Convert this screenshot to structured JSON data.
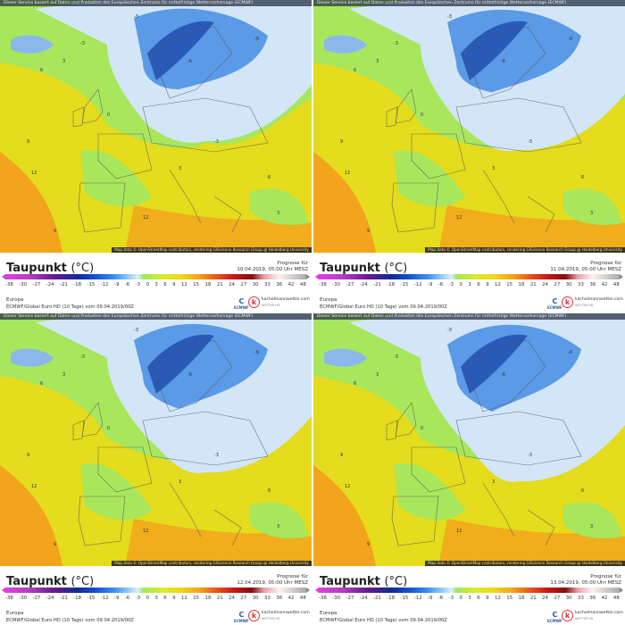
{
  "common": {
    "header_text": "Dieser Service basiert auf Daten und Produkten des Europäischen Zentrums für mittelfristige Wettervorhersage (ECMWF)",
    "attribution": "Map data © OpenStreetMap contributors, rendering GIScience Research Group @ Heidelberg University",
    "title": "Taupunkt",
    "unit": "(°C)",
    "prognose_label": "Prognose für",
    "region": "Europa",
    "model": "ECMWF/Global Euro HD (10 Tage) vom 09.04.2019/00Z",
    "ecmwf_logo": "ECMWF",
    "brand": "kachelmannwetter.com",
    "brand_sub": "WETTER HD",
    "legend_ticks": [
      "-38",
      "-30",
      "-27",
      "-24",
      "-21",
      "-18",
      "-15",
      "-12",
      "-9",
      "-6",
      "-3",
      "0",
      "3",
      "6",
      "9",
      "12",
      "15",
      "18",
      "21",
      "24",
      "27",
      "30",
      "33",
      "36",
      "42",
      "48"
    ]
  },
  "panels": [
    {
      "valid": "10.04.2019, 05:00 Uhr MESZ"
    },
    {
      "valid": "11.04.2019, 05:00 Uhr MESZ"
    },
    {
      "valid": "12.04.2019, 05:00 Uhr MESZ"
    },
    {
      "valid": "13.04.2019, 05:00 Uhr MESZ"
    }
  ],
  "colors": {
    "yellow": "#e4dc1c",
    "green": "#a8e65c",
    "light_blue": "#d2e6f8",
    "blue": "#5a9ae6",
    "dark_blue": "#2a5ab8",
    "orange": "#f2a41c"
  }
}
